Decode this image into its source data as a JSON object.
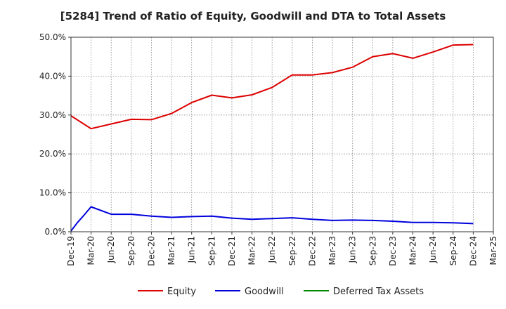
{
  "chart_data": {
    "type": "line",
    "title": "[5284]  Trend of Ratio of Equity, Goodwill and DTA to Total Assets",
    "xlabel": "",
    "ylabel": "",
    "ylim": [
      0,
      50
    ],
    "y_ticks": [
      0,
      10,
      20,
      30,
      40,
      50
    ],
    "y_tick_labels": [
      "0.0%",
      "10.0%",
      "20.0%",
      "30.0%",
      "40.0%",
      "50.0%"
    ],
    "x_tick_labels": [
      "Dec-19",
      "Mar-20",
      "Jun-20",
      "Sep-20",
      "Dec-20",
      "Mar-21",
      "Jun-21",
      "Sep-21",
      "Dec-21",
      "Mar-22",
      "Jun-22",
      "Sep-22",
      "Dec-22",
      "Mar-23",
      "Jun-23",
      "Sep-23",
      "Dec-23",
      "Mar-24",
      "Jun-24",
      "Sep-24",
      "Dec-24",
      "Mar-25"
    ],
    "grid": true,
    "legend_position": "bottom",
    "series": [
      {
        "name": "Equity",
        "color": "#dd0000",
        "x": [
          0,
          1,
          2,
          3,
          4,
          5,
          6,
          7,
          8,
          9,
          10,
          11,
          12,
          13,
          14,
          15,
          16,
          17,
          18,
          19,
          20
        ],
        "values": [
          29.8,
          26.5,
          27.7,
          28.9,
          28.8,
          30.4,
          33.2,
          35.1,
          34.4,
          35.2,
          37.1,
          40.3,
          40.3,
          40.9,
          42.3,
          45.0,
          45.8,
          44.6,
          46.2,
          48.0,
          48.1
        ]
      },
      {
        "name": "Goodwill",
        "color": "#0000dd",
        "x": [
          0,
          0.33,
          0.67,
          1,
          2,
          3,
          4,
          5,
          6,
          7,
          8,
          9,
          10,
          11,
          12,
          13,
          14,
          15,
          16,
          17,
          18,
          19,
          20
        ],
        "values": [
          0.2,
          2.4,
          4.4,
          6.4,
          4.5,
          4.5,
          4.0,
          3.7,
          3.9,
          4.0,
          3.5,
          3.2,
          3.4,
          3.6,
          3.2,
          2.9,
          3.0,
          2.9,
          2.7,
          2.4,
          2.4,
          2.3,
          2.1
        ]
      },
      {
        "name": "Deferred Tax Assets",
        "color": "#008800",
        "x": [],
        "values": []
      }
    ]
  }
}
